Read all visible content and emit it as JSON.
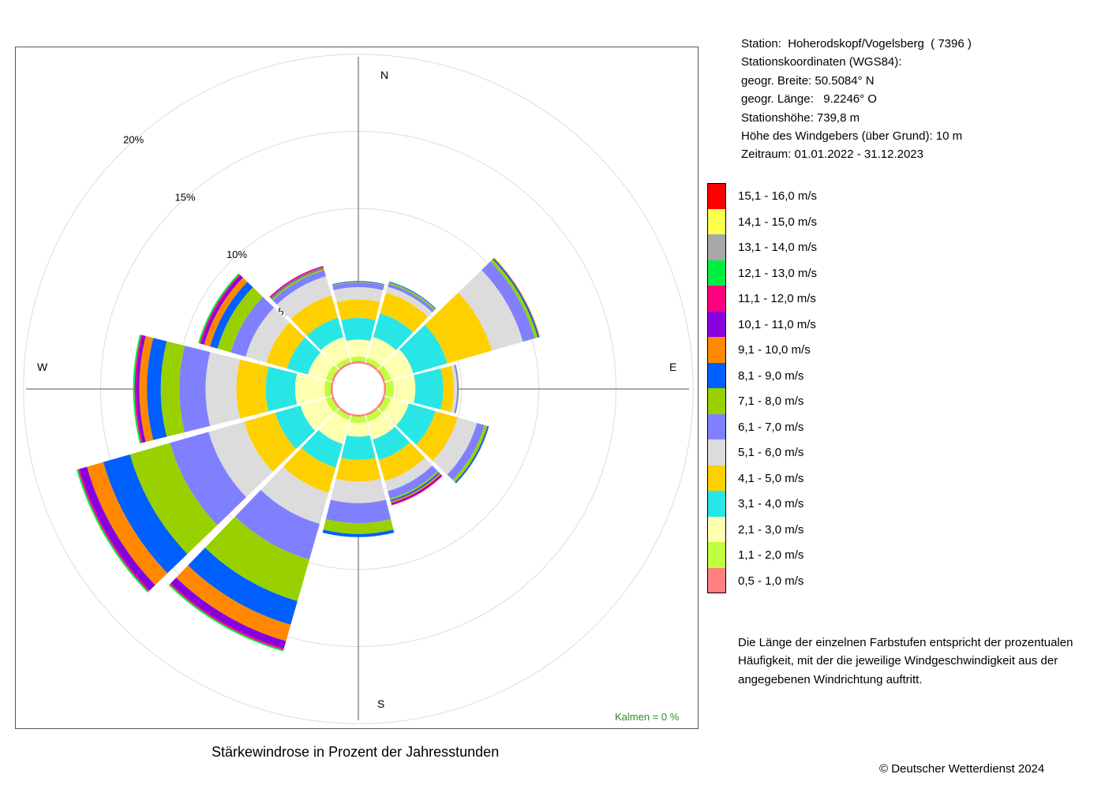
{
  "station_info": [
    "Station:  Hoherodskopf/Vogelsberg  ( 7396 )",
    "Stationskoordinaten (WGS84):",
    "geogr. Breite: 50.5084° N",
    "geogr. Länge:   9.2246° O",
    "Stationshöhe: 739,8 m",
    "Höhe des Windgebers (über Grund): 10 m",
    "Zeitraum: 01.01.2022 - 31.12.2023"
  ],
  "note": "Die Länge der einzelnen Farbstufen entspricht der prozentualen Häufigkeit, mit der die jeweilige Windgeschwindigkeit aus der angegebenen Windrichtung auftritt.",
  "copyright": "© Deutscher Wetterdienst  2024",
  "calm_label": "Kalmen  =  0 %",
  "chart_data": {
    "type": "windrose",
    "title": "Stärkewindrose in Prozent der Jahresstunden",
    "unit": "%",
    "rlim": [
      0,
      20
    ],
    "inner_radius_percent": 1.7,
    "radial_ticks": [
      {
        "value": 5,
        "label": "5%"
      },
      {
        "value": 10,
        "label": "10%"
      },
      {
        "value": 15,
        "label": "15%"
      },
      {
        "value": 20,
        "label": "20%"
      }
    ],
    "compass_labels": {
      "N": "N",
      "E": "E",
      "S": "S",
      "W": "W"
    },
    "speed_classes": [
      {
        "label": "0,5 - 1,0 m/s",
        "color": "#ff8080"
      },
      {
        "label": "1,1 - 2,0 m/s",
        "color": "#bfff3f"
      },
      {
        "label": "2,1 - 3,0 m/s",
        "color": "#ffffb0"
      },
      {
        "label": "3,1 - 4,0 m/s",
        "color": "#29e6e6"
      },
      {
        "label": "4,1 - 5,0 m/s",
        "color": "#ffd000"
      },
      {
        "label": "5,1 - 6,0 m/s",
        "color": "#dcdcdc"
      },
      {
        "label": "6,1 - 7,0 m/s",
        "color": "#8080ff"
      },
      {
        "label": "7,1 - 8,0 m/s",
        "color": "#99d100"
      },
      {
        "label": "8,1 - 9,0 m/s",
        "color": "#0060ff"
      },
      {
        "label": "9,1 - 10,0 m/s",
        "color": "#ff8800"
      },
      {
        "label": "10,1 - 11,0 m/s",
        "color": "#8800dd"
      },
      {
        "label": "11,1 - 12,0 m/s",
        "color": "#ff0080"
      },
      {
        "label": "12,1 - 13,0 m/s",
        "color": "#00ee44"
      },
      {
        "label": "13,1 - 14,0 m/s",
        "color": "#a8a8a8"
      },
      {
        "label": "14,1 - 15,0 m/s",
        "color": "#ffff50"
      },
      {
        "label": "15,1 - 16,0 m/s",
        "color": "#ff0000"
      }
    ],
    "directions": [
      {
        "deg": 0,
        "values": [
          0.1,
          0.3,
          1.1,
          1.4,
          1.2,
          0.8,
          0.3,
          0.05,
          0.05,
          0,
          0,
          0,
          0,
          0,
          0,
          0
        ]
      },
      {
        "deg": 30,
        "values": [
          0.1,
          0.3,
          1.4,
          1.6,
          1.4,
          0.4,
          0.2,
          0.1,
          0.05,
          0,
          0,
          0,
          0,
          0,
          0,
          0
        ]
      },
      {
        "deg": 60,
        "values": [
          0.1,
          0.4,
          1.5,
          2.3,
          3.0,
          2.1,
          0.8,
          0.2,
          0.1,
          0.05,
          0,
          0,
          0,
          0,
          0,
          0
        ]
      },
      {
        "deg": 90,
        "values": [
          0.1,
          0.5,
          1.4,
          1.8,
          0.7,
          0.2,
          0.1,
          0.02,
          0,
          0,
          0,
          0,
          0,
          0,
          0,
          0
        ]
      },
      {
        "deg": 120,
        "values": [
          0.1,
          0.4,
          1.2,
          1.8,
          1.5,
          1.3,
          0.5,
          0.2,
          0.1,
          0.02,
          0,
          0,
          0,
          0,
          0,
          0
        ]
      },
      {
        "deg": 150,
        "values": [
          0.1,
          0.4,
          1.2,
          1.4,
          1.4,
          0.7,
          0.5,
          0.1,
          0.1,
          0.1,
          0.1,
          0.05,
          0,
          0,
          0,
          0
        ]
      },
      {
        "deg": 180,
        "values": [
          0.1,
          0.4,
          0.9,
          1.5,
          1.4,
          1.4,
          1.3,
          0.7,
          0.2,
          0,
          0,
          0,
          0,
          0,
          0,
          0
        ]
      },
      {
        "deg": 210,
        "values": [
          0.1,
          0.3,
          1.6,
          1.6,
          1.7,
          2.1,
          2.4,
          2.8,
          1.6,
          1.1,
          0.5,
          0.1,
          0.1,
          0,
          0,
          0
        ]
      },
      {
        "deg": 240,
        "values": [
          0.1,
          0.4,
          1.7,
          1.7,
          2.1,
          2.4,
          2.6,
          2.7,
          1.8,
          1.1,
          0.5,
          0.1,
          0.1,
          0,
          0,
          0
        ]
      },
      {
        "deg": 270,
        "values": [
          0.1,
          0.4,
          1.9,
          1.9,
          1.9,
          2.0,
          1.7,
          1.2,
          0.9,
          0.5,
          0.2,
          0.1,
          0.1,
          0,
          0,
          0
        ]
      },
      {
        "deg": 300,
        "values": [
          0.1,
          0.4,
          1.2,
          1.4,
          1.4,
          1.4,
          1.0,
          0.9,
          0.5,
          0.4,
          0.2,
          0.1,
          0.1,
          0,
          0,
          0
        ]
      },
      {
        "deg": 330,
        "values": [
          0.1,
          0.3,
          1.4,
          1.3,
          1.5,
          1.3,
          0.4,
          0.1,
          0.05,
          0.05,
          0.05,
          0.05,
          0,
          0,
          0,
          0
        ]
      }
    ]
  }
}
